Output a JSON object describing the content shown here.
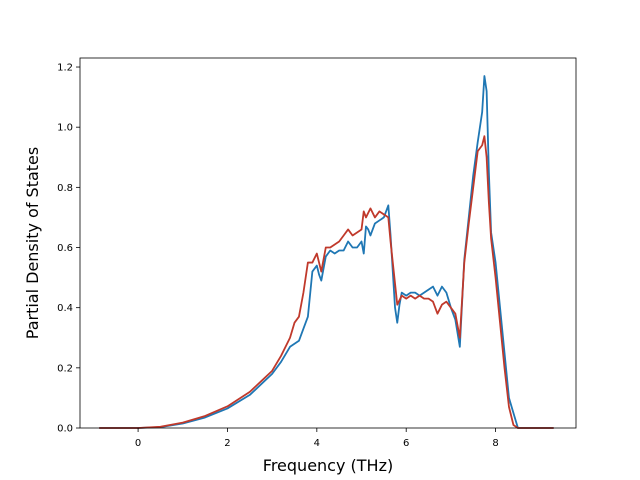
{
  "chart_data": {
    "type": "line",
    "xlabel": "Frequency (THz)",
    "ylabel": "Partial Density of States",
    "xlim": [
      -1.3,
      9.8
    ],
    "ylim": [
      0.0,
      1.23
    ],
    "xticks": [
      0,
      2,
      4,
      6,
      8
    ],
    "yticks": [
      0.0,
      0.2,
      0.4,
      0.6,
      0.8,
      1.0,
      1.2
    ],
    "xtick_labels": [
      "0",
      "2",
      "4",
      "6",
      "8"
    ],
    "ytick_labels": [
      "0.0",
      "0.2",
      "0.4",
      "0.6",
      "0.8",
      "1.0",
      "1.2"
    ],
    "grid": false,
    "series": [
      {
        "color": "#1f77b4",
        "x": [
          -0.87,
          0.0,
          0.5,
          1.0,
          1.5,
          2.0,
          2.5,
          3.0,
          3.2,
          3.4,
          3.6,
          3.7,
          3.8,
          3.9,
          4.0,
          4.05,
          4.1,
          4.2,
          4.3,
          4.4,
          4.5,
          4.6,
          4.7,
          4.8,
          4.9,
          5.0,
          5.05,
          5.1,
          5.15,
          5.2,
          5.3,
          5.4,
          5.5,
          5.6,
          5.65,
          5.7,
          5.75,
          5.8,
          5.85,
          5.9,
          6.0,
          6.1,
          6.2,
          6.3,
          6.4,
          6.5,
          6.6,
          6.7,
          6.8,
          6.9,
          7.0,
          7.1,
          7.2,
          7.3,
          7.4,
          7.5,
          7.6,
          7.7,
          7.75,
          7.8,
          7.85,
          7.9,
          8.0,
          8.1,
          8.2,
          8.3,
          8.4,
          8.5,
          9.0,
          9.3
        ],
        "y": [
          0.0,
          0.0,
          0.003,
          0.015,
          0.035,
          0.065,
          0.11,
          0.18,
          0.22,
          0.27,
          0.29,
          0.33,
          0.37,
          0.52,
          0.54,
          0.51,
          0.49,
          0.57,
          0.59,
          0.58,
          0.59,
          0.59,
          0.62,
          0.6,
          0.6,
          0.62,
          0.58,
          0.67,
          0.66,
          0.64,
          0.68,
          0.69,
          0.7,
          0.74,
          0.64,
          0.52,
          0.4,
          0.35,
          0.41,
          0.45,
          0.44,
          0.45,
          0.45,
          0.44,
          0.45,
          0.46,
          0.47,
          0.44,
          0.47,
          0.45,
          0.4,
          0.36,
          0.27,
          0.56,
          0.7,
          0.84,
          0.95,
          1.05,
          1.17,
          1.12,
          0.85,
          0.65,
          0.55,
          0.4,
          0.25,
          0.1,
          0.05,
          0.0,
          0.0,
          0.0
        ]
      },
      {
        "color": "#c0392b",
        "x": [
          -0.87,
          0.0,
          0.5,
          1.0,
          1.5,
          2.0,
          2.5,
          3.0,
          3.2,
          3.4,
          3.5,
          3.6,
          3.7,
          3.8,
          3.9,
          4.0,
          4.05,
          4.1,
          4.2,
          4.3,
          4.4,
          4.5,
          4.6,
          4.7,
          4.8,
          4.9,
          5.0,
          5.05,
          5.1,
          5.2,
          5.3,
          5.4,
          5.5,
          5.6,
          5.65,
          5.7,
          5.75,
          5.8,
          5.9,
          6.0,
          6.1,
          6.2,
          6.3,
          6.4,
          6.5,
          6.6,
          6.7,
          6.8,
          6.9,
          7.0,
          7.1,
          7.2,
          7.3,
          7.4,
          7.5,
          7.6,
          7.7,
          7.75,
          7.8,
          7.85,
          7.9,
          8.0,
          8.1,
          8.2,
          8.3,
          8.4,
          8.5,
          9.0,
          9.3
        ],
        "y": [
          0.0,
          0.0,
          0.004,
          0.018,
          0.04,
          0.072,
          0.12,
          0.19,
          0.24,
          0.3,
          0.35,
          0.37,
          0.45,
          0.55,
          0.55,
          0.58,
          0.55,
          0.52,
          0.6,
          0.6,
          0.61,
          0.62,
          0.64,
          0.66,
          0.64,
          0.65,
          0.66,
          0.72,
          0.7,
          0.73,
          0.7,
          0.72,
          0.71,
          0.7,
          0.62,
          0.55,
          0.48,
          0.41,
          0.44,
          0.43,
          0.44,
          0.43,
          0.44,
          0.43,
          0.43,
          0.42,
          0.38,
          0.41,
          0.42,
          0.4,
          0.38,
          0.3,
          0.55,
          0.68,
          0.8,
          0.92,
          0.94,
          0.97,
          0.9,
          0.75,
          0.63,
          0.5,
          0.35,
          0.2,
          0.07,
          0.01,
          0.0,
          0.0,
          0.0
        ]
      }
    ]
  }
}
